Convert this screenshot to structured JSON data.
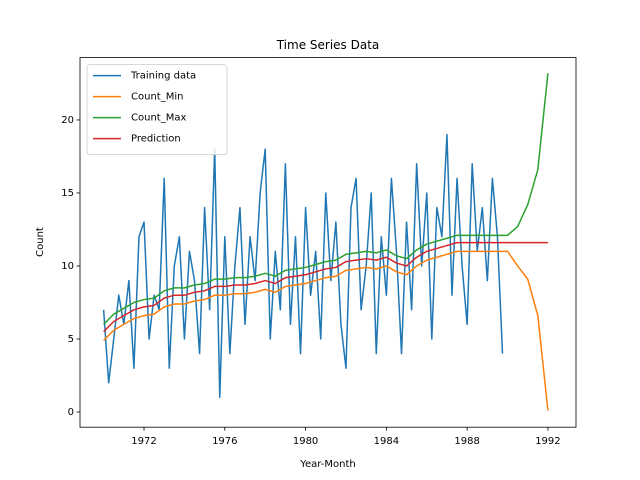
{
  "chart_data": {
    "type": "line",
    "title": "Time Series Data",
    "x_label": "Year-Month",
    "y_label": "Count",
    "xlim": [
      1968.83,
      1993.39
    ],
    "ylim": [
      -1.04,
      24.27
    ],
    "xticks": [
      1972,
      1976,
      1980,
      1984,
      1988,
      1992
    ],
    "yticks": [
      0,
      5,
      10,
      15,
      20
    ],
    "legend": "upper left",
    "series": [
      {
        "name": "Training data",
        "color": "#1f77b4",
        "x": [
          1970,
          1970.25,
          1970.5,
          1970.75,
          1971,
          1971.25,
          1971.5,
          1971.75,
          1972,
          1972.25,
          1972.5,
          1972.75,
          1973,
          1973.25,
          1973.5,
          1973.75,
          1974,
          1974.25,
          1974.5,
          1974.75,
          1975,
          1975.25,
          1975.5,
          1975.75,
          1976,
          1976.25,
          1976.5,
          1976.75,
          1977,
          1977.25,
          1977.5,
          1977.75,
          1978,
          1978.25,
          1978.5,
          1978.75,
          1979,
          1979.25,
          1979.5,
          1979.75,
          1980,
          1980.25,
          1980.5,
          1980.75,
          1981,
          1981.25,
          1981.5,
          1981.75,
          1982,
          1982.25,
          1982.5,
          1982.75,
          1983,
          1983.25,
          1983.5,
          1983.75,
          1984,
          1984.25,
          1984.5,
          1984.75,
          1985,
          1985.25,
          1985.5,
          1985.75,
          1986,
          1986.25,
          1986.5,
          1986.75,
          1987,
          1987.25,
          1987.5,
          1987.75,
          1988,
          1988.25,
          1988.5,
          1988.75,
          1989,
          1989.25,
          1989.5,
          1989.75
        ],
        "values": [
          7,
          2,
          5,
          8,
          6,
          9,
          3,
          12,
          13,
          5,
          8,
          7,
          16,
          3,
          10,
          12,
          5,
          11,
          9,
          4,
          14,
          7,
          18,
          1,
          12,
          4,
          10,
          14,
          6,
          12,
          9,
          15,
          18,
          5,
          11,
          7,
          17,
          6,
          12,
          4,
          14,
          8,
          11,
          5,
          15,
          9,
          13,
          6,
          3,
          14,
          16,
          7,
          10,
          15,
          4,
          12,
          8,
          16,
          11,
          4,
          13,
          7,
          17,
          10,
          15,
          5,
          14,
          12,
          19,
          8,
          16,
          10,
          6,
          17,
          11,
          14,
          9,
          16,
          12,
          4
        ]
      },
      {
        "name": "Count_Min",
        "color": "#ff7f0e",
        "x": [
          1970,
          1970.5,
          1971,
          1971.5,
          1972,
          1972.5,
          1973,
          1973.5,
          1974,
          1974.5,
          1975,
          1975.5,
          1976,
          1976.5,
          1977,
          1977.5,
          1978,
          1978.5,
          1979,
          1979.5,
          1980,
          1980.5,
          1981,
          1981.5,
          1982,
          1982.5,
          1983,
          1983.5,
          1984,
          1984.5,
          1985,
          1985.5,
          1986,
          1986.5,
          1987,
          1987.5,
          1988,
          1988.5,
          1989,
          1989.5,
          1990,
          1990.5,
          1991,
          1991.5,
          1992
        ],
        "values": [
          4.9,
          5.6,
          6.0,
          6.4,
          6.6,
          6.7,
          7.2,
          7.4,
          7.4,
          7.6,
          7.7,
          8.0,
          8.0,
          8.1,
          8.1,
          8.2,
          8.4,
          8.2,
          8.6,
          8.7,
          8.8,
          9.0,
          9.2,
          9.3,
          9.7,
          9.8,
          9.9,
          9.8,
          10.0,
          9.6,
          9.4,
          10.0,
          10.4,
          10.6,
          10.8,
          11.0,
          11.0,
          11.0,
          11.0,
          11.0,
          11.0,
          10.0,
          9.1,
          6.6,
          0.1
        ]
      },
      {
        "name": "Count_Max",
        "color": "#2ca02c",
        "x": [
          1970,
          1970.5,
          1971,
          1971.5,
          1972,
          1972.5,
          1973,
          1973.5,
          1974,
          1974.5,
          1975,
          1975.5,
          1976,
          1976.5,
          1977,
          1977.5,
          1978,
          1978.5,
          1979,
          1979.5,
          1980,
          1980.5,
          1981,
          1981.5,
          1982,
          1982.5,
          1983,
          1983.5,
          1984,
          1984.5,
          1985,
          1985.5,
          1986,
          1986.5,
          1987,
          1987.5,
          1988,
          1988.5,
          1989,
          1989.5,
          1990,
          1990.5,
          1991,
          1991.5,
          1992
        ],
        "values": [
          6.0,
          6.7,
          7.1,
          7.5,
          7.7,
          7.8,
          8.3,
          8.5,
          8.5,
          8.7,
          8.8,
          9.1,
          9.1,
          9.2,
          9.2,
          9.3,
          9.5,
          9.3,
          9.7,
          9.8,
          9.9,
          10.1,
          10.3,
          10.4,
          10.8,
          10.9,
          11.0,
          10.9,
          11.1,
          10.7,
          10.5,
          11.1,
          11.5,
          11.7,
          11.9,
          12.1,
          12.1,
          12.1,
          12.1,
          12.1,
          12.1,
          12.7,
          14.2,
          16.6,
          23.2
        ]
      },
      {
        "name": "Prediction",
        "color": "#d62728",
        "x": [
          1970,
          1970.5,
          1971,
          1971.5,
          1972,
          1972.5,
          1973,
          1973.5,
          1974,
          1974.5,
          1975,
          1975.5,
          1976,
          1976.5,
          1977,
          1977.5,
          1978,
          1978.5,
          1979,
          1979.5,
          1980,
          1980.5,
          1981,
          1981.5,
          1982,
          1982.5,
          1983,
          1983.5,
          1984,
          1984.5,
          1985,
          1985.5,
          1986,
          1986.5,
          1987,
          1987.5,
          1988,
          1988.5,
          1989,
          1989.5,
          1990,
          1990.5,
          1991,
          1991.5,
          1992
        ],
        "values": [
          5.5,
          6.2,
          6.6,
          7.0,
          7.2,
          7.3,
          7.8,
          8.0,
          8.0,
          8.2,
          8.3,
          8.6,
          8.6,
          8.7,
          8.7,
          8.8,
          9.0,
          8.8,
          9.2,
          9.3,
          9.4,
          9.6,
          9.8,
          9.9,
          10.3,
          10.4,
          10.5,
          10.4,
          10.6,
          10.2,
          10.0,
          10.6,
          11.0,
          11.2,
          11.4,
          11.6,
          11.6,
          11.6,
          11.6,
          11.6,
          11.6,
          11.6,
          11.6,
          11.6,
          11.6
        ]
      }
    ]
  }
}
